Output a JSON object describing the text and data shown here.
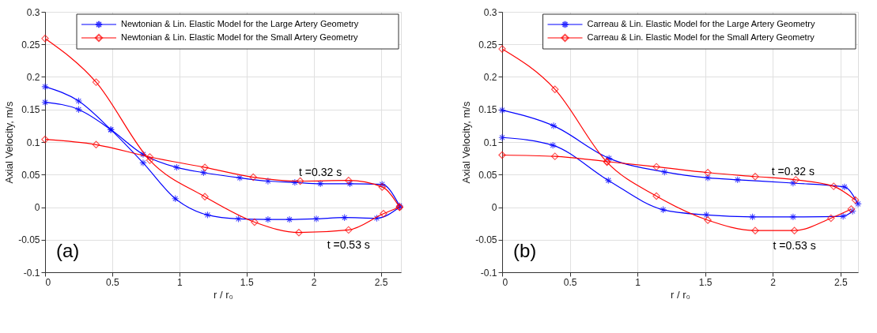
{
  "chart_data": [
    {
      "type": "line",
      "xlabel": "r / r₀",
      "ylabel": "Axial Velocity, m/s",
      "xlim": [
        0,
        2.65
      ],
      "ylim": [
        -0.1,
        0.3
      ],
      "xticks": [
        0,
        0.5,
        1,
        1.5,
        2,
        2.5
      ],
      "yticks": [
        -0.1,
        -0.05,
        0,
        0.05,
        0.1,
        0.15,
        0.2,
        0.25,
        0.3
      ],
      "grid": true,
      "legend": "top right",
      "annotations": [
        {
          "text": "t =0.32 s",
          "x": 2.05,
          "y": 0.036
        },
        {
          "text": "t =0.53 s",
          "x": 2.26,
          "y": -0.035
        },
        "(a)"
      ],
      "series": [
        {
          "name": "Newtonian & Lin. Elastic Model for the Large Artery Geometry",
          "color": "#0000ff",
          "marker": "cross",
          "x": [
            0,
            0.25,
            0.49,
            0.73,
            0.98,
            1.18,
            1.45,
            1.66,
            1.86,
            2.05,
            2.27,
            2.51,
            2.64
          ],
          "values": [
            0.161,
            0.15,
            0.119,
            0.081,
            0.061,
            0.053,
            0.045,
            0.04,
            0.038,
            0.036,
            0.036,
            0.035,
            0.002
          ]
        },
        {
          "color": "#0000ff",
          "marker": "cross",
          "x": [
            0,
            0.25,
            0.49,
            0.73,
            0.97,
            1.21,
            1.44,
            1.66,
            1.82,
            2.02,
            2.23,
            2.47,
            2.64
          ],
          "values": [
            0.185,
            0.163,
            0.119,
            0.068,
            0.013,
            -0.012,
            -0.018,
            -0.019,
            -0.019,
            -0.018,
            -0.016,
            -0.017,
            0
          ]
        },
        {
          "name": "Newtonian & Lin. Elastic Model for the Small Artery Geometry",
          "color": "#ff0000",
          "marker": "diamond",
          "x": [
            0,
            0.38,
            0.78,
            1.19,
            1.55,
            1.9,
            2.26,
            2.51,
            2.64
          ],
          "values": [
            0.104,
            0.096,
            0.077,
            0.061,
            0.046,
            0.04,
            0.041,
            0.031,
            0
          ]
        },
        {
          "color": "#ff0000",
          "marker": "diamond",
          "x": [
            0,
            0.38,
            0.78,
            1.19,
            1.56,
            1.89,
            2.26,
            2.52,
            2.64
          ],
          "values": [
            0.259,
            0.192,
            0.072,
            0.016,
            -0.023,
            -0.039,
            -0.035,
            -0.01,
            0
          ]
        }
      ]
    },
    {
      "type": "line",
      "xlabel": "r / r₀",
      "ylabel": "Axial Velocity, m/s",
      "xlim": [
        0,
        2.63
      ],
      "ylim": [
        -0.1,
        0.3
      ],
      "xticks": [
        0,
        0.5,
        1,
        1.5,
        2,
        2.5
      ],
      "yticks": [
        -0.1,
        -0.05,
        0,
        0.05,
        0.1,
        0.15,
        0.2,
        0.25,
        0.3
      ],
      "grid": true,
      "legend": "top right",
      "annotations": [
        {
          "text": "t =0.32 s",
          "x": 2.15,
          "y": 0.037
        },
        {
          "text": "t =0.53 s",
          "x": 2.16,
          "y": -0.036
        },
        "(b)"
      ],
      "series": [
        {
          "name": "Carreau & Lin. Elastic Model for the Large Artery Geometry",
          "color": "#0000ff",
          "marker": "cross",
          "x": [
            0,
            0.38,
            0.79,
            1.2,
            1.52,
            1.74,
            2.15,
            2.53,
            2.63
          ],
          "values": [
            0.149,
            0.125,
            0.075,
            0.054,
            0.045,
            0.042,
            0.037,
            0.031,
            0.005
          ]
        },
        {
          "color": "#0000ff",
          "marker": "cross",
          "x": [
            0,
            0.375,
            0.785,
            1.19,
            1.51,
            1.85,
            2.15,
            2.52,
            2.59
          ],
          "values": [
            0.107,
            0.095,
            0.041,
            -0.004,
            -0.012,
            -0.015,
            -0.015,
            -0.014,
            -0.006
          ]
        },
        {
          "name": "Carreau & Lin. Elastic Model for the Small Artery Geometry",
          "color": "#ff0000",
          "marker": "diamond",
          "x": [
            0,
            0.39,
            0.775,
            1.14,
            1.52,
            1.87,
            2.17,
            2.45,
            2.61
          ],
          "values": [
            0.08,
            0.078,
            0.07,
            0.062,
            0.053,
            0.047,
            0.042,
            0.032,
            0.011
          ]
        },
        {
          "color": "#ff0000",
          "marker": "diamond",
          "x": [
            0,
            0.39,
            0.775,
            1.14,
            1.52,
            1.87,
            2.16,
            2.43,
            2.58
          ],
          "values": [
            0.243,
            0.181,
            0.069,
            0.017,
            -0.02,
            -0.036,
            -0.036,
            -0.017,
            -0.003
          ]
        }
      ]
    }
  ]
}
